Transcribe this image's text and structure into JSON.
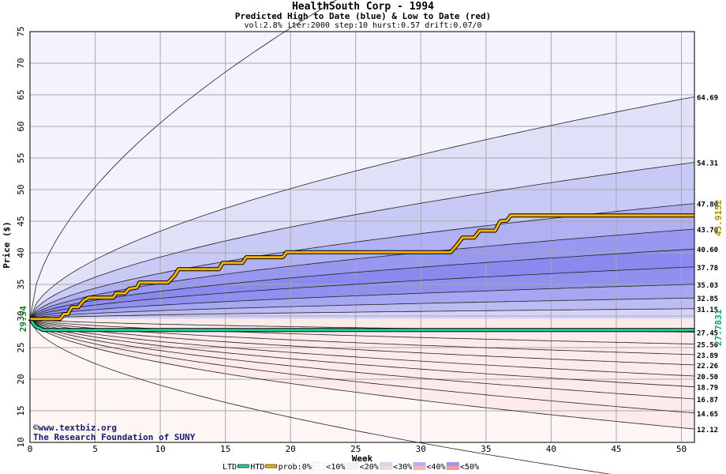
{
  "chart_data": {
    "type": "area",
    "title": "HealthSouth Corp - 1994",
    "subtitle": "Predicted High to Date (blue) &  Low to Date (red)",
    "params": "vol:2.8% iter:2000 step:10 hurst:0.57 drift:0.07/0",
    "xlabel": "Week",
    "ylabel": "Price ($)",
    "xlim": [
      0,
      51
    ],
    "ylim": [
      10,
      75
    ],
    "x_ticks": [
      0,
      5,
      10,
      15,
      20,
      25,
      30,
      35,
      40,
      45,
      50
    ],
    "y_ticks": [
      10,
      15,
      20,
      25,
      30,
      35,
      40,
      45,
      50,
      55,
      60,
      65,
      70,
      75
    ],
    "grid": true,
    "start_price": 29.54,
    "start_label": "29.54",
    "blue_bands": [
      {
        "end": 64.69,
        "label": "64.69",
        "color": "#e0e0f8"
      },
      {
        "end": 54.31,
        "label": "54.31",
        "color": "#c9c9f6"
      },
      {
        "end": 47.8,
        "label": "47.80",
        "color": "#b0b0f3"
      },
      {
        "end": 43.76,
        "label": "43.76",
        "color": "#9898f0"
      },
      {
        "end": 40.6,
        "label": "40.60",
        "color": "#8a8aee"
      },
      {
        "end": 37.78,
        "label": "37.78",
        "color": "#9090ef"
      },
      {
        "end": 35.03,
        "label": "35.03",
        "color": "#a6a6f2"
      },
      {
        "end": 32.85,
        "label": "32.85",
        "color": "#bcbcf5"
      },
      {
        "end": 31.15,
        "label": "31.15",
        "color": "#d4d4f8"
      }
    ],
    "red_bands": [
      {
        "end": 27.45,
        "label": "27.45",
        "color": "#fde2e2"
      },
      {
        "end": 25.56,
        "label": "25.56",
        "color": "#fccaca"
      },
      {
        "end": 23.89,
        "label": "23.89",
        "color": "#fbb0b0"
      },
      {
        "end": 22.26,
        "label": "22.26",
        "color": "#fa9898"
      },
      {
        "end": 20.5,
        "label": "20.50",
        "color": "#f98484"
      },
      {
        "end": 18.79,
        "label": "18.79",
        "color": "#fa9a9a"
      },
      {
        "end": 16.87,
        "label": "16.87",
        "color": "#fbb4b4"
      },
      {
        "end": 14.65,
        "label": "14.65",
        "color": "#fcd0d0"
      },
      {
        "end": 12.12,
        "label": "12.12",
        "color": "#fdeaea"
      }
    ],
    "outer_blue_color": "#f3f3fd",
    "outer_red_color": "#fef5f5",
    "htd_series": {
      "name": "HTD",
      "color": "#f0b400",
      "final_label": "45.9152",
      "points": [
        [
          0,
          29.54
        ],
        [
          2.3,
          29.54
        ],
        [
          2.6,
          30.3
        ],
        [
          2.9,
          30.3
        ],
        [
          3.2,
          31.4
        ],
        [
          3.7,
          31.4
        ],
        [
          4.1,
          32.4
        ],
        [
          4.5,
          32.9
        ],
        [
          6.4,
          32.9
        ],
        [
          6.6,
          33.6
        ],
        [
          7.3,
          33.6
        ],
        [
          7.6,
          34.3
        ],
        [
          8.2,
          34.5
        ],
        [
          8.4,
          35.3
        ],
        [
          10.6,
          35.3
        ],
        [
          11.1,
          36.4
        ],
        [
          11.4,
          37.4
        ],
        [
          14.5,
          37.4
        ],
        [
          14.8,
          38.4
        ],
        [
          16.3,
          38.4
        ],
        [
          16.6,
          39.3
        ],
        [
          19.4,
          39.3
        ],
        [
          19.7,
          40.1
        ],
        [
          32.3,
          40.1
        ],
        [
          32.8,
          41.3
        ],
        [
          33.2,
          42.4
        ],
        [
          34.1,
          42.4
        ],
        [
          34.5,
          43.5
        ],
        [
          35.7,
          43.5
        ],
        [
          36.1,
          45.0
        ],
        [
          36.6,
          45.1
        ],
        [
          36.9,
          45.9
        ],
        [
          51,
          45.9
        ]
      ]
    },
    "ltd_series": {
      "name": "LTD",
      "color": "#20d0a0",
      "final_label": "27.7831",
      "points": [
        [
          0,
          29.54
        ],
        [
          0.4,
          28.4
        ],
        [
          1.0,
          27.78
        ],
        [
          51,
          27.78
        ]
      ]
    },
    "legend": {
      "ltd": "LTD",
      "htd": "HTD",
      "prob": "prob:0%",
      "p10": "<10%",
      "p20": "<20%",
      "p30": "<30%",
      "p40": "<40%",
      "p50": "<50%"
    },
    "legend_colors": {
      "p0": "#fdfdfd",
      "p10": [
        "#eeeefc",
        "#fdeeee"
      ],
      "p20": [
        "#d4d4f8",
        "#fcd4d4"
      ],
      "p30": [
        "#b4b4f4",
        "#fbb4b4"
      ],
      "p40": [
        "#9898f0",
        "#fa9898"
      ],
      "p50": [
        "#7c7cec",
        "#f87c7c"
      ]
    },
    "watermark": {
      "line1": "©www.textbiz.org",
      "line2": "The Research Foundation of SUNY"
    }
  }
}
